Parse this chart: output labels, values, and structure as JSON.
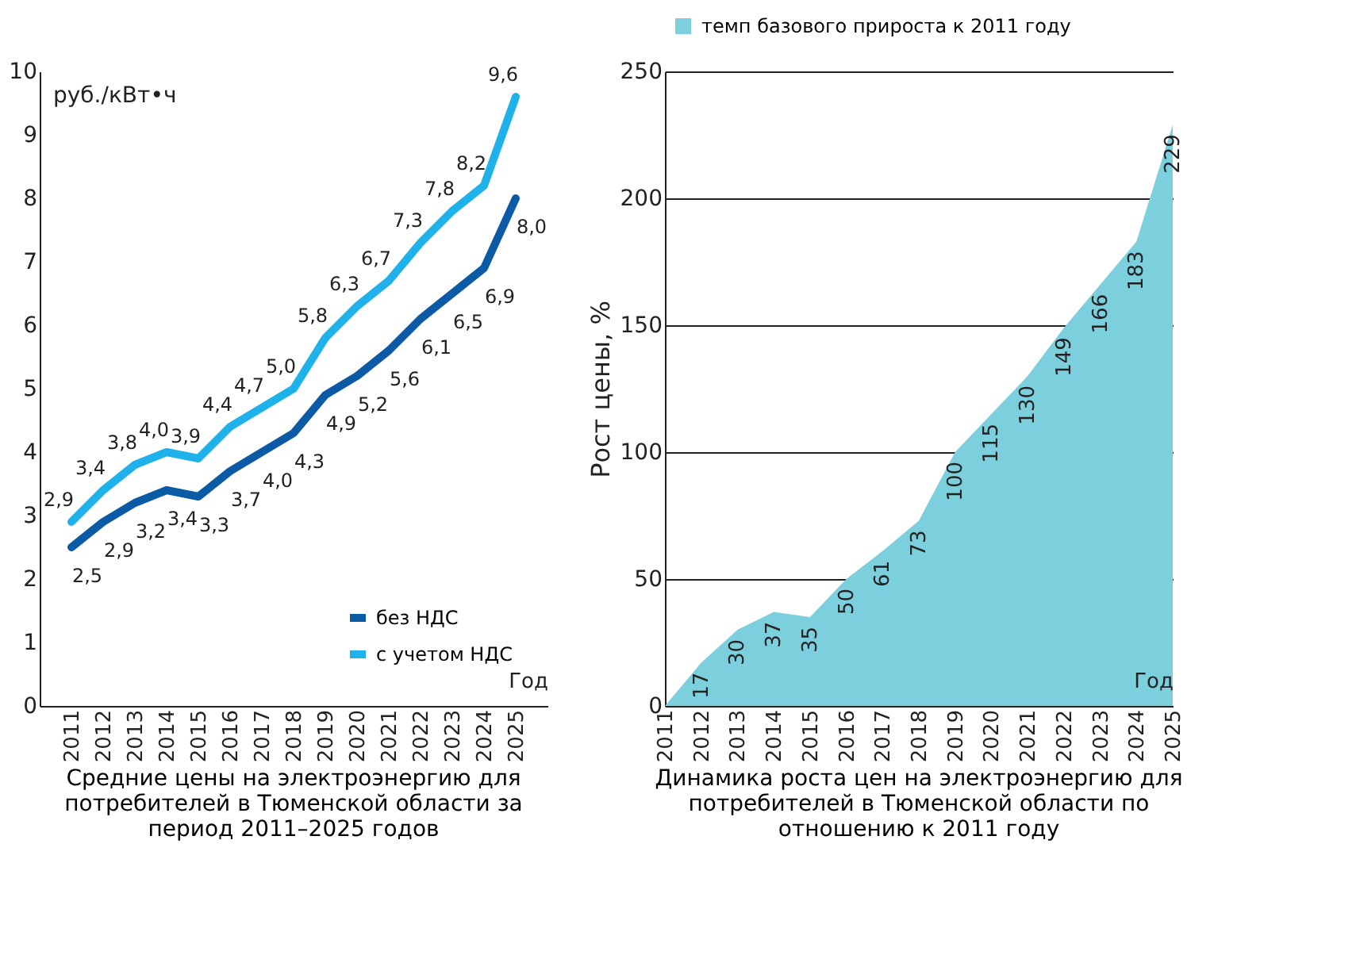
{
  "chart_data": [
    {
      "type": "line",
      "title": "Средние цены на электроэнергию для потребителей в Тюменской области за период 2011–2025 годов",
      "xlabel": "Год",
      "ylabel": "руб./кВт•ч",
      "categories": [
        "2011",
        "2012",
        "2013",
        "2014",
        "2015",
        "2016",
        "2017",
        "2018",
        "2019",
        "2020",
        "2021",
        "2022",
        "2023",
        "2024",
        "2025"
      ],
      "series": [
        {
          "name": "без НДС",
          "color": "#0b5aa6",
          "values": [
            2.5,
            2.9,
            3.2,
            3.4,
            3.3,
            3.7,
            4.0,
            4.3,
            4.9,
            5.2,
            5.6,
            6.1,
            6.5,
            6.9,
            8.0
          ],
          "value_labels": [
            "2,5",
            "2,9",
            "3,2",
            "3,4",
            "3,3",
            "3,7",
            "4,0",
            "4,3",
            "4,9",
            "5,2",
            "5,6",
            "6,1",
            "6,5",
            "6,9",
            "8,0"
          ]
        },
        {
          "name": "с учетом НДС",
          "color": "#1fb2ea",
          "values": [
            2.9,
            3.4,
            3.8,
            4.0,
            3.9,
            4.4,
            4.7,
            5.0,
            5.8,
            6.3,
            6.7,
            7.3,
            7.8,
            8.2,
            9.6
          ],
          "value_labels": [
            "2,9",
            "3,4",
            "3,8",
            "4,0",
            "3,9",
            "4,4",
            "4,7",
            "5,0",
            "5,8",
            "6,3",
            "6,7",
            "7,3",
            "7,8",
            "8,2",
            "9,6"
          ]
        }
      ],
      "ylim": [
        0,
        10
      ],
      "yticks": [
        0,
        1,
        2,
        3,
        4,
        5,
        6,
        7,
        8,
        9,
        10
      ],
      "grid": false,
      "legend": "bottom right"
    },
    {
      "type": "area",
      "title": "Динамика роста цен на электроэнергию для потребителей в Тюменской области по отношению к 2011 году",
      "xlabel": "Год",
      "ylabel": "Рост цены, %",
      "categories": [
        "2011",
        "2012",
        "2013",
        "2014",
        "2015",
        "2016",
        "2017",
        "2018",
        "2019",
        "2020",
        "2021",
        "2022",
        "2023",
        "2024",
        "2025"
      ],
      "series": [
        {
          "name": "темп базового прироста к 2011 году",
          "color": "#7ccfdc",
          "values": [
            0,
            17,
            30,
            37,
            35,
            50,
            61,
            73,
            100,
            115,
            130,
            149,
            166,
            183,
            229
          ],
          "value_labels": [
            null,
            "17",
            "30",
            "37",
            "35",
            "50",
            "61",
            "73",
            "100",
            "115",
            "130",
            "149",
            "166",
            "183",
            "229"
          ]
        }
      ],
      "ylim": [
        0,
        250
      ],
      "yticks": [
        0,
        50,
        100,
        150,
        200,
        250
      ],
      "grid": "y",
      "legend": "top"
    }
  ]
}
